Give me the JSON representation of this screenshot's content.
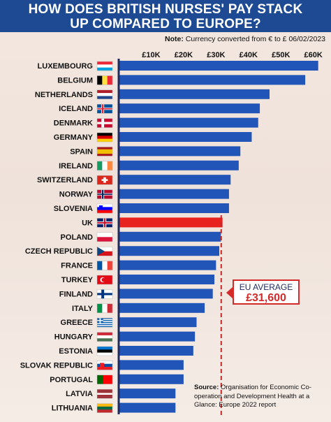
{
  "header": {
    "title_line1": "HOW DOES BRITISH NURSES' PAY STACK",
    "title_line2": "UP COMPARED TO EUROPE?"
  },
  "note": {
    "label": "Note:",
    "text": "Currency converted from € to £ 06/02/2023"
  },
  "source": {
    "label": "Source:",
    "text": "Organisation for Economic Co-operation and Development Health at a Glance: Europe 2022 report"
  },
  "callout": {
    "label": "EU AVERAGE",
    "value": "£31,600"
  },
  "colors": {
    "bar": "#2255b8",
    "highlight": "#e8231f",
    "axis_line": "#1d2b5e",
    "average_line": "#c62828",
    "title_bg": "#1d4a93"
  },
  "chart_data": {
    "type": "bar",
    "orientation": "horizontal",
    "xlim": [
      0,
      62000
    ],
    "x_ticks": [
      {
        "value": 10000,
        "label": "£10K"
      },
      {
        "value": 20000,
        "label": "£20K"
      },
      {
        "value": 30000,
        "label": "£30K"
      },
      {
        "value": 40000,
        "label": "£40K"
      },
      {
        "value": 50000,
        "label": "£50K"
      },
      {
        "value": 60000,
        "label": "£60K"
      }
    ],
    "average": 31600,
    "highlight": "UK",
    "categories": [
      "LUXEMBOURG",
      "BELGIUM",
      "NETHERLANDS",
      "ICELAND",
      "DENMARK",
      "GERMANY",
      "SPAIN",
      "IRELAND",
      "SWITZERLAND",
      "NORWAY",
      "SLOVENIA",
      "UK",
      "POLAND",
      "CZECH REPUBLIC",
      "FRANCE",
      "TURKEY",
      "FINLAND",
      "ITALY",
      "GREECE",
      "HUNGARY",
      "ESTONIA",
      "SLOVAK REPUBLIC",
      "PORTUGAL",
      "LATVIA",
      "LITHUANIA"
    ],
    "values": [
      61500,
      57500,
      46500,
      43500,
      43000,
      41000,
      37500,
      37000,
      34500,
      34000,
      34000,
      32000,
      31500,
      31000,
      30000,
      29500,
      29000,
      26500,
      24000,
      23500,
      23000,
      20000,
      20000,
      17500,
      17500
    ],
    "flags": [
      "lu",
      "be",
      "nl",
      "is",
      "dk",
      "de",
      "es",
      "ie",
      "ch",
      "no",
      "si",
      "gb",
      "pl",
      "cz",
      "fr",
      "tr",
      "fi",
      "it",
      "gr",
      "hu",
      "ee",
      "sk",
      "pt",
      "lv",
      "lt"
    ]
  }
}
